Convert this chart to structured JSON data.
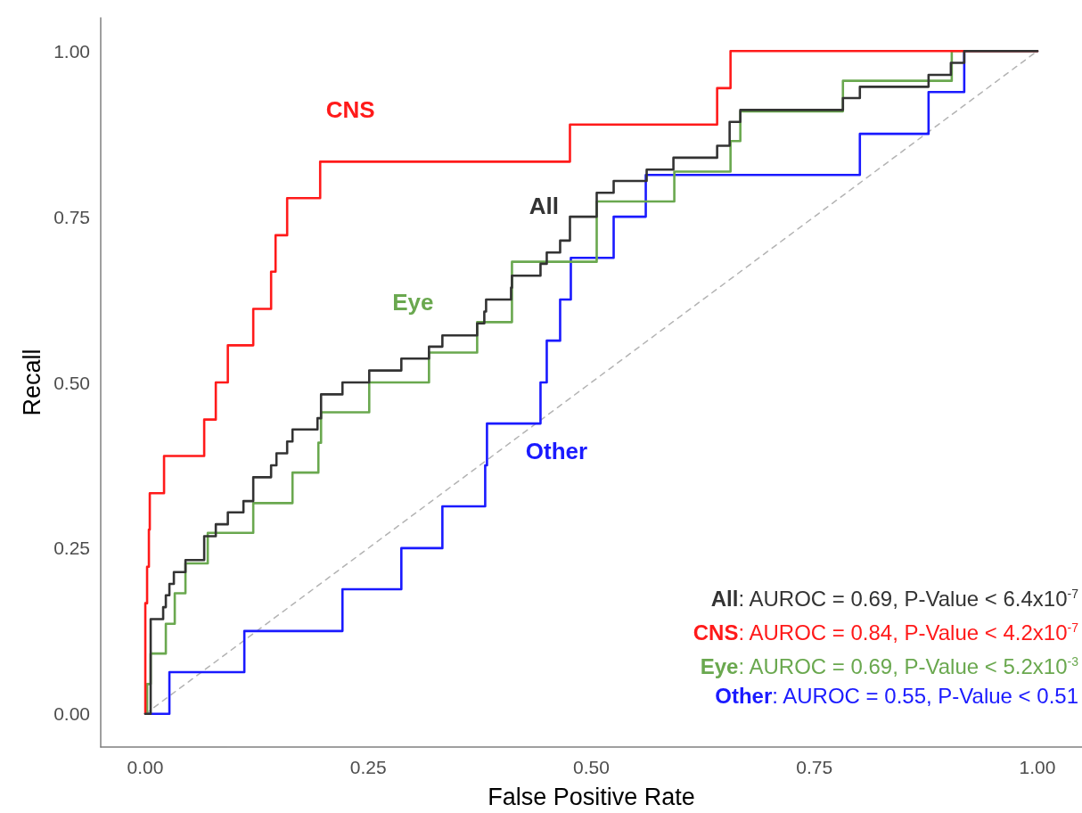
{
  "chart_data": {
    "type": "step",
    "xlabel": "False Positive Rate",
    "ylabel": "Recall",
    "xlim": [
      -0.05,
      1.05
    ],
    "ylim": [
      -0.05,
      1.05
    ],
    "xticks": [
      {
        "value": 0,
        "label": "0.00"
      },
      {
        "value": 0.25,
        "label": "0.25"
      },
      {
        "value": 0.5,
        "label": "0.50"
      },
      {
        "value": 0.75,
        "label": "0.75"
      },
      {
        "value": 1,
        "label": "1.00"
      }
    ],
    "yticks": [
      {
        "value": 0,
        "label": "0.00"
      },
      {
        "value": 0.25,
        "label": "0.25"
      },
      {
        "value": 0.5,
        "label": "0.50"
      },
      {
        "value": 0.75,
        "label": "0.75"
      },
      {
        "value": 1,
        "label": "1.00"
      }
    ],
    "grid": false,
    "marker": "none",
    "line_style": "solid",
    "series": [
      {
        "name": "All",
        "color": "#333333",
        "x": [
          0,
          0.006,
          0.02,
          0.023,
          0.027,
          0.032,
          0.045,
          0.066,
          0.079,
          0.0925,
          0.11,
          0.121,
          0.141,
          0.147,
          0.159,
          0.165,
          0.193,
          0.197,
          0.221,
          0.251,
          0.287,
          0.318,
          0.333,
          0.372,
          0.38,
          0.382,
          0.41,
          0.411,
          0.443,
          0.45,
          0.465,
          0.476,
          0.506,
          0.525,
          0.562,
          0.592,
          0.641,
          0.655,
          0.667,
          0.782,
          0.801,
          0.878,
          0.903,
          0.918,
          1
        ],
        "values": [
          0,
          0.143,
          0.161,
          0.179,
          0.196,
          0.214,
          0.232,
          0.268,
          0.286,
          0.304,
          0.321,
          0.357,
          0.375,
          0.393,
          0.411,
          0.429,
          0.446,
          0.482,
          0.5,
          0.518,
          0.536,
          0.554,
          0.571,
          0.589,
          0.607,
          0.625,
          0.643,
          0.661,
          0.679,
          0.696,
          0.714,
          0.75,
          0.786,
          0.804,
          0.821,
          0.839,
          0.857,
          0.893,
          0.911,
          0.929,
          0.946,
          0.964,
          0.982,
          1,
          1
        ]
      },
      {
        "name": "CNS",
        "color": "#ff1a1a",
        "x": [
          0,
          0,
          0.002,
          0.004,
          0.005,
          0.021,
          0.066,
          0.079,
          0.0925,
          0.121,
          0.141,
          0.146,
          0.159,
          0.196,
          0.476,
          0.641,
          0.656,
          1
        ],
        "values": [
          0,
          0.167,
          0.222,
          0.278,
          0.333,
          0.389,
          0.444,
          0.5,
          0.556,
          0.611,
          0.667,
          0.722,
          0.778,
          0.833,
          0.889,
          0.944,
          1,
          1
        ]
      },
      {
        "name": "Eye",
        "color": "#6aa84f",
        "x": [
          0,
          0.002,
          0.006,
          0.023,
          0.033,
          0.045,
          0.07,
          0.121,
          0.165,
          0.194,
          0.197,
          0.251,
          0.318,
          0.372,
          0.411,
          0.506,
          0.593,
          0.656,
          0.667,
          0.782,
          0.904,
          1
        ],
        "values": [
          0,
          0.045,
          0.091,
          0.136,
          0.182,
          0.227,
          0.273,
          0.318,
          0.364,
          0.409,
          0.455,
          0.5,
          0.545,
          0.591,
          0.682,
          0.773,
          0.818,
          0.864,
          0.909,
          0.955,
          1,
          1
        ]
      },
      {
        "name": "Other",
        "color": "#1a1aff",
        "x": [
          0,
          0.027,
          0.111,
          0.221,
          0.287,
          0.333,
          0.381,
          0.383,
          0.443,
          0.45,
          0.465,
          0.477,
          0.525,
          0.561,
          0.801,
          0.878,
          0.918,
          1
        ],
        "values": [
          0,
          0.063,
          0.125,
          0.188,
          0.25,
          0.313,
          0.375,
          0.438,
          0.5,
          0.563,
          0.625,
          0.688,
          0.75,
          0.813,
          0.875,
          0.938,
          1,
          1
        ]
      },
      {
        "type": "line",
        "color": "#b3b3b3",
        "line_style": "dashed",
        "x": [
          0,
          1
        ],
        "values": [
          0,
          1
        ]
      }
    ],
    "annotations": [
      "All: AUROC = 0.69, P-Value < 6.4x10$^{-7}$",
      "CNS: AUROC = 0.84, P-Value < 4.2x10$^{-7}$",
      "Eye: AUROC = 0.69, P-Value < 5.2x10$^{-3}$",
      "Other: AUROC = 0.55, P-Value < 0.51"
    ]
  }
}
